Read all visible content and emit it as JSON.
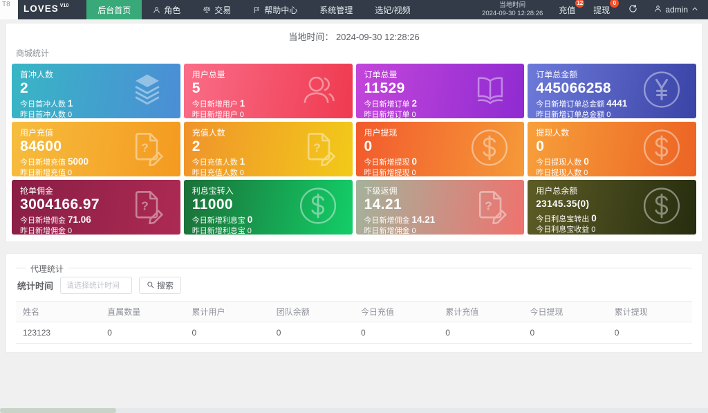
{
  "corner_label": "T8",
  "colors": {
    "navbar_bg": "#323b47",
    "accent_green": "#3aa97a",
    "badge_red": "#f4502c",
    "page_bg": "#f0f0f0"
  },
  "navbar": {
    "logo": "LOVES",
    "logo_version": "V10",
    "menu": [
      {
        "label": "后台首页",
        "icon": "",
        "active": true
      },
      {
        "label": "角色",
        "icon": "user-icon",
        "active": false
      },
      {
        "label": "交易",
        "icon": "scales-icon",
        "active": false
      },
      {
        "label": "帮助中心",
        "icon": "flag-icon",
        "active": false
      },
      {
        "label": "系统管理",
        "icon": "",
        "active": false
      },
      {
        "label": "选妃/视频",
        "icon": "",
        "active": false
      }
    ],
    "local_time_label": "当地时间",
    "local_time_value": "2024-09-30 12:28:26",
    "shortcuts": [
      {
        "label": "充值",
        "badge": "12"
      },
      {
        "label": "提现",
        "badge": "0"
      }
    ],
    "username": "admin"
  },
  "overview": {
    "time_label": "当地时间：",
    "time_value": "2024-09-30 12:28:26",
    "section_title": "商城统计",
    "cards": [
      {
        "title": "首冲人数",
        "value": "2",
        "line1_label": "今日首冲人数",
        "line1_value": "1",
        "line2_label": "昨日首冲人数",
        "line2_value": "0",
        "icon": "layers-icon",
        "gradient": [
          "#38b6c4",
          "#4b8dd6"
        ]
      },
      {
        "title": "用户总量",
        "value": "5",
        "line1_label": "今日新增用户",
        "line1_value": "1",
        "line2_label": "昨日新增用户",
        "line2_value": "0",
        "icon": "users-icon",
        "gradient": [
          "#fa6d88",
          "#ef3a50"
        ]
      },
      {
        "title": "订单总量",
        "value": "11529",
        "line1_label": "今日新增订单",
        "line1_value": "2",
        "line2_label": "昨日新增订单",
        "line2_value": "0",
        "icon": "book-icon",
        "gradient": [
          "#c346da",
          "#8f2bd1"
        ]
      },
      {
        "title": "订单总金额",
        "value": "445066258",
        "line1_label": "今日新增订单总金额",
        "line1_value": "4441",
        "line2_label": "昨日新增订单总金额",
        "line2_value": "0",
        "icon": "yen-circle-icon",
        "gradient": [
          "#6d7ad9",
          "#3a43a6"
        ]
      },
      {
        "title": "用户充值",
        "value": "84600",
        "line1_label": "今日新增充值",
        "line1_value": "5000",
        "line2_label": "昨日新增充值",
        "line2_value": "0",
        "icon": "edit-doc-icon",
        "gradient": [
          "#f6bd3e",
          "#f49a20"
        ]
      },
      {
        "title": "充值人数",
        "value": "2",
        "line1_label": "今日充值人数",
        "line1_value": "1",
        "line2_label": "昨日充值人数",
        "line2_value": "0",
        "icon": "edit-doc-icon",
        "gradient": [
          "#f0932c",
          "#f2ca19"
        ]
      },
      {
        "title": "用户提现",
        "value": "0",
        "line1_label": "今日新增提现",
        "line1_value": "0",
        "line2_label": "昨日新增提现",
        "line2_value": "0",
        "icon": "dollar-circle-icon",
        "gradient": [
          "#f25a2d",
          "#f59a38"
        ]
      },
      {
        "title": "提现人数",
        "value": "0",
        "line1_label": "今日提现人数",
        "line1_value": "0",
        "line2_label": "昨日提现人数",
        "line2_value": "0",
        "icon": "dollar-circle-icon",
        "gradient": [
          "#f7a03a",
          "#ec6324"
        ]
      },
      {
        "title": "抢单佣金",
        "value": "3004166.97",
        "line1_label": "今日新增佣金",
        "line1_value": "71.06",
        "line2_label": "昨日新增佣金",
        "line2_value": "0",
        "icon": "edit-doc-icon",
        "gradient": [
          "#891e45",
          "#ac2a53"
        ]
      },
      {
        "title": "利息宝转入",
        "value": "11000",
        "line1_label": "今日新增利息宝",
        "line1_value": "0",
        "line2_label": "昨日新增利息宝",
        "line2_value": "0",
        "icon": "dollar-circle-icon",
        "gradient": [
          "#1b7038",
          "#13ce68"
        ]
      },
      {
        "title": "下级返佣",
        "value": "14.21",
        "line1_label": "今日新增佣金",
        "line1_value": "14.21",
        "line2_label": "昨日新增佣金",
        "line2_value": "0",
        "icon": "edit-doc-icon",
        "gradient": [
          "#a4b29b",
          "#ef726e"
        ]
      },
      {
        "title": "用户总余额",
        "value": "23145.35(0)",
        "line1_label": "今日利息宝转出",
        "line1_value": "0",
        "line2_label": "今日利息宝收益",
        "line2_value": "0",
        "icon": "dollar-circle-icon",
        "gradient": [
          "#5d5c26",
          "#262d0f"
        ],
        "value_small": true
      }
    ]
  },
  "agent_section": {
    "legend": "代理统计",
    "filter_label": "统计时间",
    "filter_placeholder": "请选择统计时间",
    "search_label": "搜索",
    "table": {
      "headers": [
        "姓名",
        "直属数量",
        "累计用户",
        "团队余额",
        "今日充值",
        "累计充值",
        "今日提现",
        "累计提现"
      ],
      "rows": [
        [
          "123123",
          "0",
          "0",
          "0",
          "0",
          "0",
          "0",
          "0"
        ]
      ]
    }
  }
}
